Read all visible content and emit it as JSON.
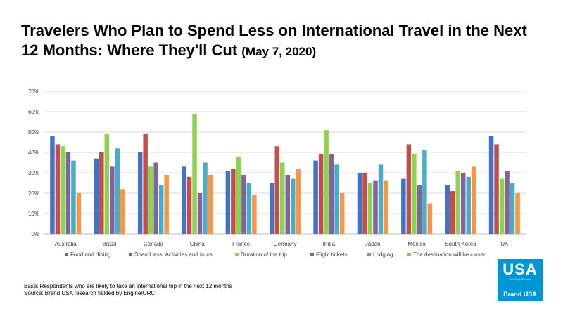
{
  "title_main": "Travelers Who Plan to Spend Less on International Travel in the Next 12 Months: Where They'll Cut",
  "title_date": "(May 7, 2020)",
  "notes": {
    "base": "Base: Respondents who are likely to take an international trip in the next 12 months",
    "source": "Source: Brand USA research fielded by Engine/ORC"
  },
  "logo": {
    "text": "USA",
    "url": "VisitTheUSA.com",
    "brand": "Brand USA",
    "color": "#0096d6"
  },
  "chart_data": {
    "type": "bar",
    "title": "",
    "xlabel": "",
    "ylabel": "",
    "ylim": [
      0,
      70
    ],
    "yticks": [
      "0%",
      "10%",
      "20%",
      "30%",
      "40%",
      "50%",
      "60%",
      "70%"
    ],
    "grid": true,
    "legend_position": "bottom",
    "categories": [
      "Australia",
      "Brazil",
      "Canada",
      "China",
      "France",
      "Germany",
      "India",
      "Japan",
      "Mexico",
      "South Korea",
      "UK"
    ],
    "series": [
      {
        "name": "Food and dining",
        "color": "#4472c4",
        "values": [
          48,
          37,
          40,
          33,
          31,
          25,
          36,
          30,
          27,
          24,
          48
        ]
      },
      {
        "name": "Spend less: Activities and tours",
        "color": "#c0504d",
        "values": [
          44,
          40,
          49,
          28,
          32,
          43,
          39,
          30,
          44,
          21,
          44
        ]
      },
      {
        "name": "Duration of the trip",
        "color": "#92d050",
        "values": [
          43,
          49,
          33,
          59,
          38,
          35,
          51,
          25,
          39,
          31,
          27
        ]
      },
      {
        "name": "Flight tickets",
        "color": "#8064a2",
        "values": [
          40,
          33,
          35,
          20,
          29,
          29,
          39,
          26,
          24,
          30,
          31
        ]
      },
      {
        "name": "Lodging",
        "color": "#4bacc6",
        "values": [
          36,
          42,
          24,
          35,
          25,
          27,
          34,
          34,
          41,
          28,
          25
        ]
      },
      {
        "name": "The destination will be closer",
        "color": "#f79646",
        "values": [
          20,
          22,
          29,
          29,
          19,
          32,
          20,
          26,
          15,
          33,
          20
        ]
      }
    ]
  }
}
